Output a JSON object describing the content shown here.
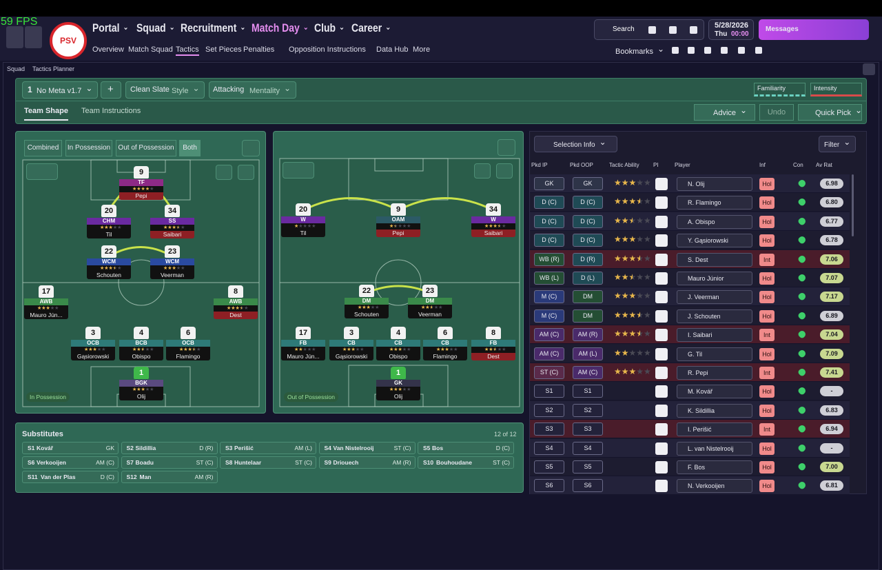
{
  "fps": "59 FPS",
  "nav": {
    "badge": "PSV",
    "main": [
      "Portal",
      "Squad",
      "Recruitment",
      "Match Day",
      "Club",
      "Career"
    ],
    "sub": [
      "Overview",
      "Match Squad",
      "Tactics",
      "Set Pieces",
      "Penalties",
      "Opposition Instructions",
      "Data Hub",
      "More"
    ],
    "search": "Search",
    "date": "5/28/2026",
    "day": "Thu",
    "time": "00:00",
    "messages": "Messages",
    "bookmarks": "Bookmarks"
  },
  "breadcrumb": [
    "Squad",
    "Tactics Planner"
  ],
  "toolbar": {
    "slot": "1",
    "tactic": "No Meta v1.7",
    "add": "+",
    "style_value": "Clean Slate",
    "style_label": "Style",
    "mentality_value": "Attacking",
    "mentality_label": "Mentality",
    "familiarity": "Familiarity",
    "intensity": "Intensity"
  },
  "tabs": [
    "Team Shape",
    "Team Instructions"
  ],
  "actions": {
    "advice": "Advice",
    "undo": "Undo",
    "quick_pick": "Quick Pick"
  },
  "view_modes": [
    "Combined",
    "In Possession",
    "Out of Possession",
    "Both"
  ],
  "in_possession": {
    "label": "In Possession",
    "players": [
      {
        "number": 9,
        "role": "TF",
        "stars": 4,
        "name": "Pepi"
      },
      {
        "number": 20,
        "role": "CHM",
        "stars": 3,
        "name": "Til"
      },
      {
        "number": 34,
        "role": "SS",
        "stars": 3.5,
        "name": "Saibari"
      },
      {
        "number": 22,
        "role": "WCM",
        "stars": 3.5,
        "name": "Schouten"
      },
      {
        "number": 23,
        "role": "WCM",
        "stars": 3,
        "name": "Veerman"
      },
      {
        "number": 17,
        "role": "AWB",
        "stars": 3,
        "name": "Mauro Jún..."
      },
      {
        "number": 8,
        "role": "AWB",
        "stars": 3.5,
        "name": "Dest"
      },
      {
        "number": 3,
        "role": "OCB",
        "stars": 3,
        "name": "Gąsiorowski"
      },
      {
        "number": 4,
        "role": "BCB",
        "stars": 2.5,
        "name": "Obispo"
      },
      {
        "number": 6,
        "role": "OCB",
        "stars": 3.5,
        "name": "Flamingo"
      },
      {
        "number": 1,
        "role": "BGK",
        "stars": 3,
        "name": "Olij"
      }
    ]
  },
  "out_of_possession": {
    "label": "Out of Possession",
    "players": [
      {
        "number": 20,
        "role": "W",
        "stars": 1,
        "name": "Til"
      },
      {
        "number": 9,
        "role": "OAM",
        "stars": 1.5,
        "name": "Pepi"
      },
      {
        "number": 34,
        "role": "W",
        "stars": 3.5,
        "name": "Saibari"
      },
      {
        "number": 22,
        "role": "DM",
        "stars": 3,
        "name": "Schouten"
      },
      {
        "number": 23,
        "role": "DM",
        "stars": 2.5,
        "name": "Veerman"
      },
      {
        "number": 17,
        "role": "FB",
        "stars": 2,
        "name": "Mauro Jún..."
      },
      {
        "number": 3,
        "role": "CB",
        "stars": 3,
        "name": "Gąsiorowski"
      },
      {
        "number": 4,
        "role": "CB",
        "stars": 3,
        "name": "Obispo"
      },
      {
        "number": 6,
        "role": "CB",
        "stars": 3,
        "name": "Flamingo"
      },
      {
        "number": 8,
        "role": "FB",
        "stars": 2.5,
        "name": "Dest"
      },
      {
        "number": 1,
        "role": "GK",
        "stars": 3,
        "name": "Olij"
      }
    ]
  },
  "substitutes": {
    "title": "Substitutes",
    "count": "12 of 12",
    "players": [
      {
        "slot": "S1",
        "name": "Kovář",
        "position": "GK"
      },
      {
        "slot": "S2",
        "name": "Sildillia",
        "position": "D (R)"
      },
      {
        "slot": "S3",
        "name": "Perišić",
        "position": "AM (L)"
      },
      {
        "slot": "S4",
        "name": "Van Nistelrooij",
        "position": "ST (C)"
      },
      {
        "slot": "S5",
        "name": "Bos",
        "position": "D (C)"
      },
      {
        "slot": "S6",
        "name": "Verkooijen",
        "position": "AM (C)"
      },
      {
        "slot": "S7",
        "name": "Boadu",
        "position": "ST (C)"
      },
      {
        "slot": "S8",
        "name": "Huntelaar",
        "position": "ST (C)"
      },
      {
        "slot": "S9",
        "name": "Driouech",
        "position": "AM (R)"
      },
      {
        "slot": "S10",
        "name": "Bouhoudane",
        "position": "ST (C)"
      },
      {
        "slot": "S11",
        "name": "Van der Plas",
        "position": "D (C)"
      },
      {
        "slot": "S12",
        "name": "Man",
        "position": "AM (R)"
      }
    ]
  },
  "selection": {
    "title": "Selection Info",
    "filter": "Filter",
    "columns": [
      "Pkd IP",
      "Pkd OOP",
      "Tactic Ability",
      "PI",
      "Player",
      "Inf",
      "Con",
      "Av Rat"
    ],
    "rows": [
      {
        "ip": "GK",
        "oop": "GK",
        "ability": 3,
        "player": "N. Olij",
        "inf": "Hol",
        "rating": "6.98"
      },
      {
        "ip": "D (C)",
        "oop": "D (C)",
        "ability": 3.5,
        "player": "R. Flamingo",
        "inf": "Hol",
        "rating": "6.80"
      },
      {
        "ip": "D (C)",
        "oop": "D (C)",
        "ability": 2.5,
        "player": "A. Obispo",
        "inf": "Hol",
        "rating": "6.77"
      },
      {
        "ip": "D (C)",
        "oop": "D (C)",
        "ability": 3,
        "player": "Y. Gąsiorowski",
        "inf": "Hol",
        "rating": "6.78"
      },
      {
        "ip": "WB (R)",
        "oop": "D (R)",
        "ability": 3.5,
        "player": "S. Dest",
        "inf": "Int",
        "rating": "7.06"
      },
      {
        "ip": "WB (L)",
        "oop": "D (L)",
        "ability": 2.5,
        "player": "Mauro Júnior",
        "inf": "Hol",
        "rating": "7.07"
      },
      {
        "ip": "M (C)",
        "oop": "DM",
        "ability": 3,
        "player": "J. Veerman",
        "inf": "Hol",
        "rating": "7.17"
      },
      {
        "ip": "M (C)",
        "oop": "DM",
        "ability": 3.5,
        "player": "J. Schouten",
        "inf": "Hol",
        "rating": "6.89"
      },
      {
        "ip": "AM (C)",
        "oop": "AM (R)",
        "ability": 3.5,
        "player": "I. Saibari",
        "inf": "Int",
        "rating": "7.04"
      },
      {
        "ip": "AM (C)",
        "oop": "AM (L)",
        "ability": 2,
        "player": "G. Til",
        "inf": "Hol",
        "rating": "7.09"
      },
      {
        "ip": "ST (C)",
        "oop": "AM (C)",
        "ability": 3,
        "player": "R. Pepi",
        "inf": "Int",
        "rating": "7.41"
      },
      {
        "ip": "S1",
        "oop": "S1",
        "ability": null,
        "player": "M. Kovář",
        "inf": "Hol",
        "rating": "-"
      },
      {
        "ip": "S2",
        "oop": "S2",
        "ability": null,
        "player": "K. Sildillia",
        "inf": "Hol",
        "rating": "6.83"
      },
      {
        "ip": "S3",
        "oop": "S3",
        "ability": null,
        "player": "I. Perišić",
        "inf": "Int",
        "rating": "6.94"
      },
      {
        "ip": "S4",
        "oop": "S4",
        "ability": null,
        "player": "L. van Nistelrooij",
        "inf": "Hol",
        "rating": "-"
      },
      {
        "ip": "S5",
        "oop": "S5",
        "ability": null,
        "player": "F. Bos",
        "inf": "Hol",
        "rating": "7.00"
      },
      {
        "ip": "S6",
        "oop": "S6",
        "ability": null,
        "player": "N. Verkooijen",
        "inf": "Hol",
        "rating": "6.81"
      }
    ]
  }
}
